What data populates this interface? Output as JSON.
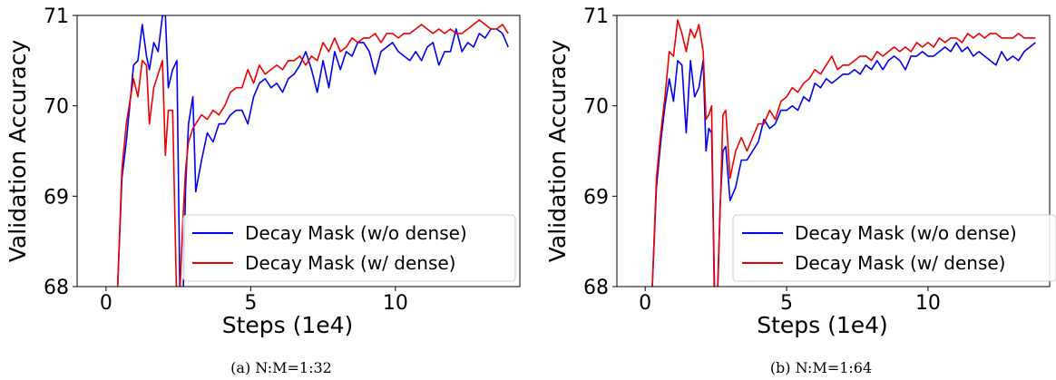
{
  "chart_data": [
    {
      "type": "line",
      "caption": "(a) N:M=1:32",
      "xlabel": "Steps (1e4)",
      "ylabel": "Validation Accuracy",
      "xlim": [
        -1,
        14.3
      ],
      "ylim": [
        68,
        71
      ],
      "xticks": [
        0,
        5,
        10
      ],
      "yticks": [
        68,
        69,
        70,
        71
      ],
      "legend_position": "lower-right",
      "series": [
        {
          "name": "Decay Mask (w/o dense)",
          "color": "#0000ee",
          "x": [
            0.4,
            0.55,
            0.7,
            0.85,
            0.95,
            1.1,
            1.25,
            1.4,
            1.5,
            1.65,
            1.8,
            1.95,
            2.05,
            2.15,
            2.3,
            2.45,
            2.55,
            2.65,
            2.75,
            2.85,
            3.0,
            3.1,
            3.3,
            3.5,
            3.7,
            3.9,
            4.1,
            4.3,
            4.5,
            4.7,
            4.9,
            5.1,
            5.3,
            5.5,
            5.7,
            5.9,
            6.1,
            6.3,
            6.5,
            6.7,
            6.9,
            7.1,
            7.3,
            7.5,
            7.7,
            7.9,
            8.1,
            8.3,
            8.5,
            8.7,
            8.9,
            9.1,
            9.3,
            9.5,
            9.7,
            9.9,
            10.1,
            10.3,
            10.5,
            10.7,
            10.9,
            11.1,
            11.3,
            11.5,
            11.7,
            11.9,
            12.1,
            12.3,
            12.5,
            12.7,
            12.9,
            13.1,
            13.3,
            13.5,
            13.7,
            13.9
          ],
          "values": [
            68.0,
            69.2,
            69.6,
            70.1,
            70.45,
            70.5,
            70.9,
            70.55,
            70.4,
            70.7,
            70.6,
            71.0,
            71.0,
            70.2,
            70.4,
            70.5,
            68.0,
            67.7,
            69.1,
            69.8,
            70.1,
            69.05,
            69.4,
            69.7,
            69.6,
            69.8,
            69.8,
            69.9,
            69.95,
            69.95,
            69.8,
            70.1,
            70.25,
            70.3,
            70.2,
            70.25,
            70.15,
            70.3,
            70.35,
            70.45,
            70.6,
            70.4,
            70.15,
            70.5,
            70.2,
            70.6,
            70.4,
            70.6,
            70.55,
            70.7,
            70.7,
            70.6,
            70.35,
            70.6,
            70.65,
            70.7,
            70.6,
            70.55,
            70.5,
            70.6,
            70.5,
            70.65,
            70.7,
            70.45,
            70.6,
            70.6,
            70.85,
            70.6,
            70.7,
            70.65,
            70.8,
            70.75,
            70.85,
            70.85,
            70.8,
            70.65
          ]
        },
        {
          "name": "Decay Mask (w/ dense)",
          "color": "#ee0000",
          "x": [
            0.4,
            0.55,
            0.7,
            0.85,
            0.95,
            1.1,
            1.25,
            1.4,
            1.5,
            1.65,
            1.8,
            1.95,
            2.05,
            2.15,
            2.3,
            2.45,
            2.55,
            2.65,
            2.75,
            2.85,
            3.0,
            3.1,
            3.3,
            3.5,
            3.7,
            3.9,
            4.1,
            4.3,
            4.5,
            4.7,
            4.9,
            5.1,
            5.3,
            5.5,
            5.7,
            5.9,
            6.1,
            6.3,
            6.5,
            6.7,
            6.9,
            7.1,
            7.3,
            7.5,
            7.7,
            7.9,
            8.1,
            8.3,
            8.5,
            8.7,
            8.9,
            9.1,
            9.3,
            9.5,
            9.7,
            9.9,
            10.1,
            10.3,
            10.5,
            10.7,
            10.9,
            11.1,
            11.3,
            11.5,
            11.7,
            11.9,
            12.1,
            12.3,
            12.5,
            12.7,
            12.9,
            13.1,
            13.3,
            13.5,
            13.7,
            13.9
          ],
          "values": [
            68.0,
            69.3,
            69.8,
            70.1,
            70.3,
            70.1,
            70.5,
            70.45,
            69.8,
            70.2,
            70.35,
            70.5,
            69.45,
            69.95,
            69.95,
            67.7,
            67.9,
            68.7,
            69.3,
            69.6,
            69.75,
            69.8,
            69.9,
            69.85,
            69.95,
            69.9,
            70.0,
            70.15,
            70.2,
            70.2,
            70.4,
            70.25,
            70.45,
            70.35,
            70.4,
            70.45,
            70.4,
            70.5,
            70.5,
            70.55,
            70.45,
            70.55,
            70.5,
            70.7,
            70.6,
            70.75,
            70.6,
            70.65,
            70.75,
            70.7,
            70.75,
            70.75,
            70.8,
            70.7,
            70.8,
            70.8,
            70.75,
            70.8,
            70.8,
            70.85,
            70.9,
            70.85,
            70.8,
            70.85,
            70.8,
            70.85,
            70.8,
            70.8,
            70.85,
            70.9,
            70.95,
            70.9,
            70.85,
            70.85,
            70.9,
            70.8
          ]
        }
      ]
    },
    {
      "type": "line",
      "caption": "(b) N:M=1:64",
      "xlabel": "Steps (1e4)",
      "ylabel": "Validation Accuracy",
      "xlim": [
        -1,
        14.3
      ],
      "ylim": [
        68,
        71
      ],
      "xticks": [
        0,
        5,
        10
      ],
      "yticks": [
        68,
        69,
        70,
        71
      ],
      "legend_position": "lower-right",
      "series": [
        {
          "name": "Decay Mask (w/o dense)",
          "color": "#0000ee",
          "x": [
            0.25,
            0.4,
            0.55,
            0.7,
            0.85,
            1.0,
            1.15,
            1.3,
            1.45,
            1.6,
            1.75,
            1.9,
            2.05,
            2.15,
            2.25,
            2.35,
            2.45,
            2.55,
            2.65,
            2.75,
            2.85,
            3.0,
            3.2,
            3.4,
            3.6,
            3.8,
            4.0,
            4.2,
            4.4,
            4.6,
            4.8,
            5.0,
            5.2,
            5.4,
            5.6,
            5.8,
            6.0,
            6.2,
            6.4,
            6.6,
            6.8,
            7.0,
            7.2,
            7.4,
            7.6,
            7.8,
            8.0,
            8.2,
            8.4,
            8.6,
            8.8,
            9.0,
            9.2,
            9.4,
            9.6,
            9.8,
            10.0,
            10.2,
            10.4,
            10.6,
            10.8,
            11.0,
            11.2,
            11.4,
            11.6,
            11.8,
            12.0,
            12.2,
            12.4,
            12.6,
            12.8,
            13.0,
            13.2,
            13.4,
            13.6,
            13.8
          ],
          "values": [
            68.0,
            69.1,
            69.6,
            70.0,
            70.3,
            70.05,
            70.5,
            70.45,
            69.7,
            70.5,
            70.1,
            70.2,
            70.5,
            69.5,
            69.75,
            69.7,
            68.0,
            67.8,
            68.9,
            69.5,
            69.55,
            68.95,
            69.1,
            69.4,
            69.4,
            69.5,
            69.6,
            69.85,
            69.75,
            69.8,
            69.95,
            69.95,
            70.0,
            69.95,
            70.1,
            70.05,
            70.25,
            70.2,
            70.3,
            70.25,
            70.3,
            70.35,
            70.35,
            70.4,
            70.35,
            70.45,
            70.4,
            70.5,
            70.4,
            70.5,
            70.55,
            70.5,
            70.4,
            70.55,
            70.55,
            70.6,
            70.55,
            70.55,
            70.6,
            70.65,
            70.6,
            70.7,
            70.6,
            70.65,
            70.55,
            70.6,
            70.55,
            70.5,
            70.45,
            70.6,
            70.5,
            70.55,
            70.5,
            70.6,
            70.65,
            70.7
          ]
        },
        {
          "name": "Decay Mask (w/ dense)",
          "color": "#ee0000",
          "x": [
            0.25,
            0.4,
            0.55,
            0.7,
            0.85,
            1.0,
            1.15,
            1.3,
            1.45,
            1.6,
            1.75,
            1.9,
            2.05,
            2.15,
            2.25,
            2.35,
            2.45,
            2.55,
            2.65,
            2.75,
            2.85,
            3.0,
            3.2,
            3.4,
            3.6,
            3.8,
            4.0,
            4.2,
            4.4,
            4.6,
            4.8,
            5.0,
            5.2,
            5.4,
            5.6,
            5.8,
            6.0,
            6.2,
            6.4,
            6.6,
            6.8,
            7.0,
            7.2,
            7.4,
            7.6,
            7.8,
            8.0,
            8.2,
            8.4,
            8.6,
            8.8,
            9.0,
            9.2,
            9.4,
            9.6,
            9.8,
            10.0,
            10.2,
            10.4,
            10.6,
            10.8,
            11.0,
            11.2,
            11.4,
            11.6,
            11.8,
            12.0,
            12.2,
            12.4,
            12.6,
            12.8,
            13.0,
            13.2,
            13.4,
            13.6,
            13.8
          ],
          "values": [
            68.0,
            69.2,
            69.7,
            70.1,
            70.6,
            70.55,
            70.95,
            70.8,
            70.6,
            70.85,
            70.75,
            70.9,
            70.6,
            69.85,
            69.9,
            70.0,
            67.7,
            67.9,
            68.85,
            69.9,
            69.95,
            69.2,
            69.5,
            69.65,
            69.5,
            69.65,
            69.8,
            69.8,
            69.95,
            69.85,
            70.05,
            70.1,
            70.2,
            70.15,
            70.25,
            70.3,
            70.4,
            70.35,
            70.45,
            70.55,
            70.4,
            70.45,
            70.45,
            70.5,
            70.55,
            70.55,
            70.5,
            70.6,
            70.55,
            70.6,
            70.65,
            70.6,
            70.65,
            70.6,
            70.7,
            70.65,
            70.7,
            70.65,
            70.75,
            70.7,
            70.75,
            70.75,
            70.7,
            70.8,
            70.75,
            70.8,
            70.75,
            70.8,
            70.8,
            70.75,
            70.75,
            70.75,
            70.8,
            70.75,
            70.75,
            70.75
          ]
        }
      ]
    }
  ]
}
